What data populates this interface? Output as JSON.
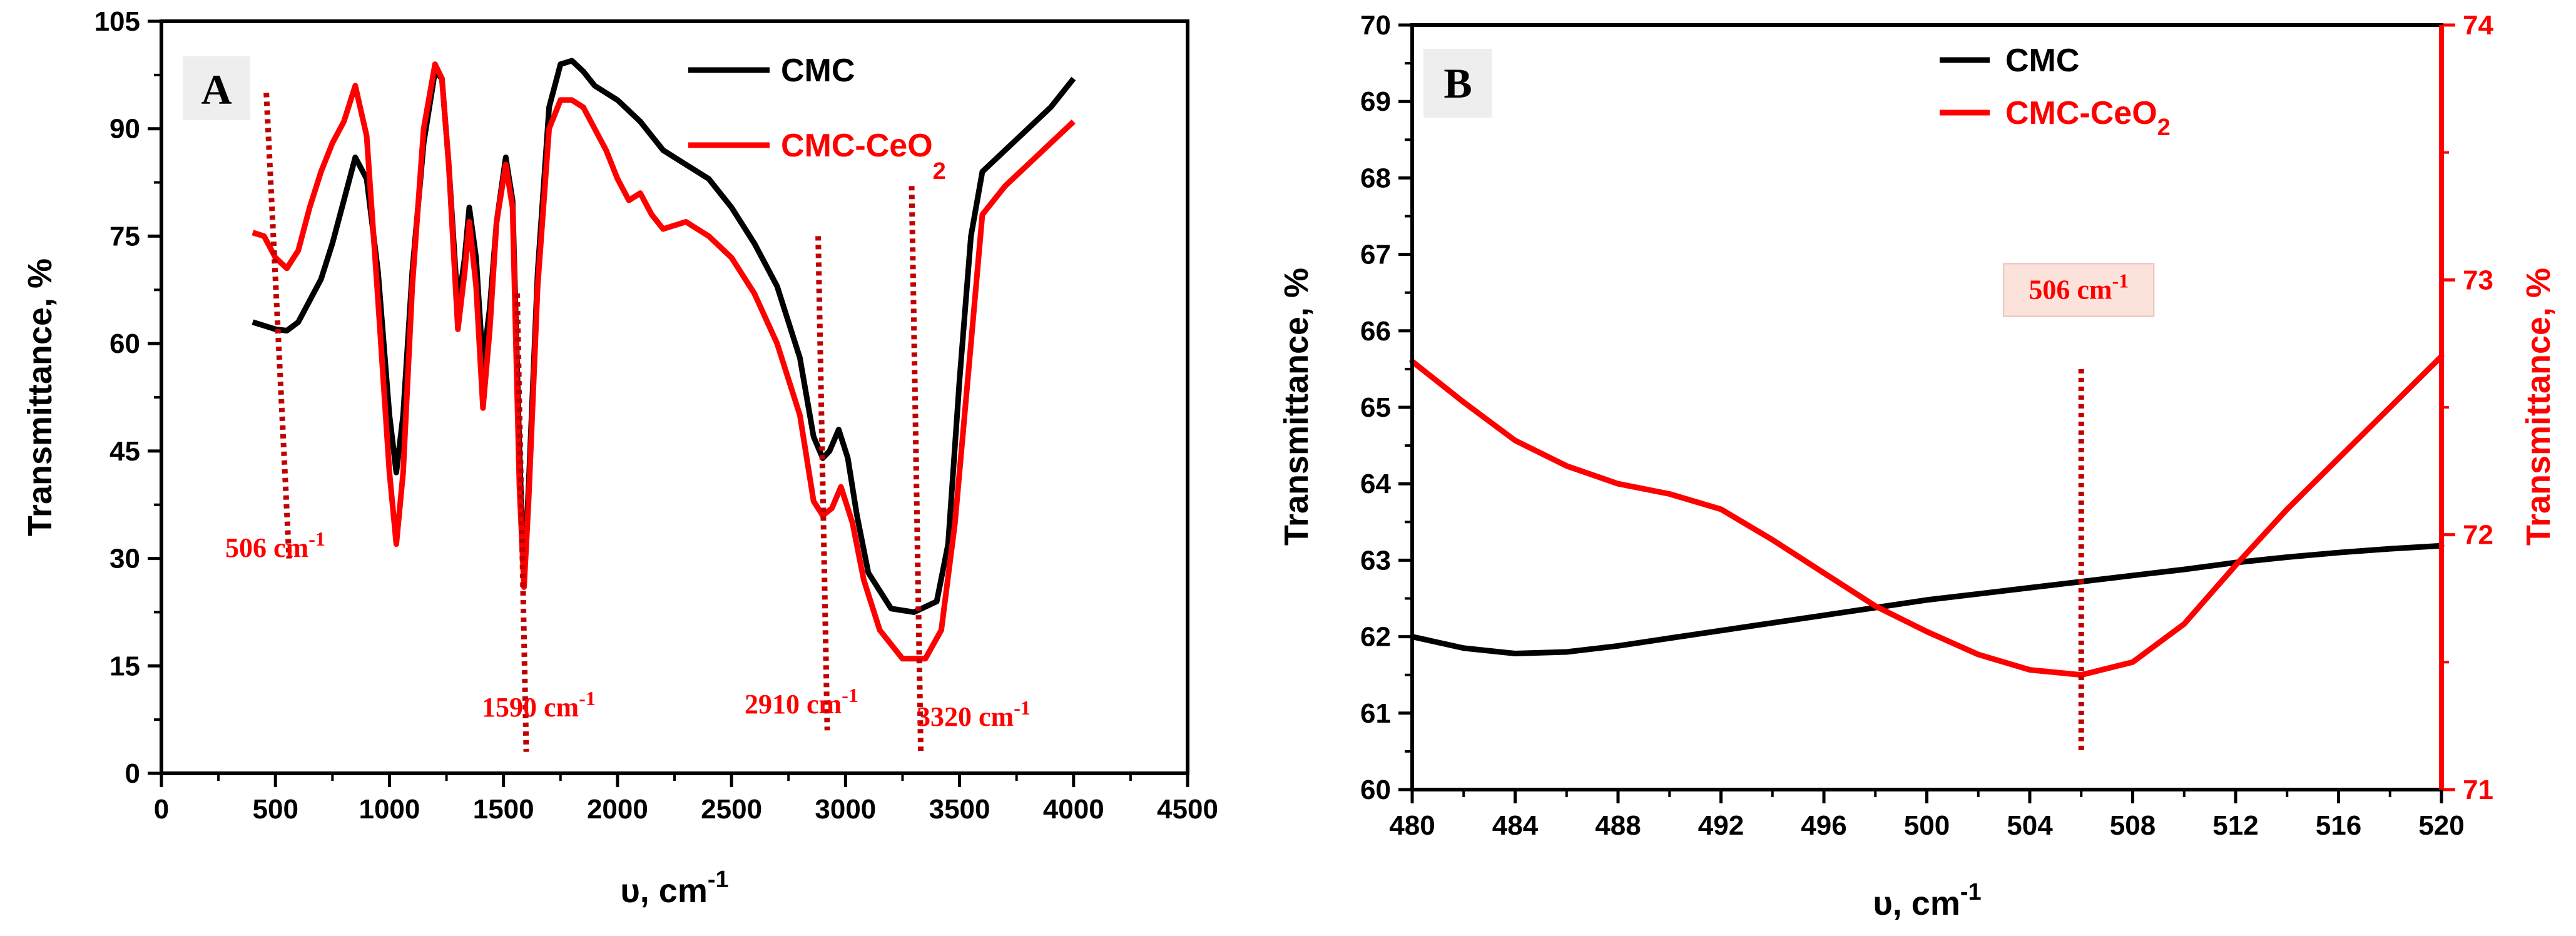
{
  "chart_data": [
    {
      "panel": "A",
      "type": "line",
      "xlabel": "υ, cm",
      "xlabel_sup": "-1",
      "ylabel": "Transmittance, %",
      "xlim": [
        0,
        4500
      ],
      "ylim": [
        0,
        105
      ],
      "xticks": [
        0,
        500,
        1000,
        1500,
        2000,
        2500,
        3000,
        3500,
        4000,
        4500
      ],
      "yticks": [
        0,
        15,
        30,
        45,
        60,
        75,
        90,
        105
      ],
      "legend_position": "top-right",
      "series": [
        {
          "name": "CMC",
          "name_sub": "",
          "color": "#000000",
          "points": [
            [
              400,
              63
            ],
            [
              450,
              62.5
            ],
            [
              500,
              62
            ],
            [
              550,
              61.8
            ],
            [
              600,
              63
            ],
            [
              650,
              66
            ],
            [
              700,
              69
            ],
            [
              750,
              74
            ],
            [
              800,
              80
            ],
            [
              850,
              86
            ],
            [
              900,
              83
            ],
            [
              950,
              70
            ],
            [
              1000,
              50
            ],
            [
              1030,
              42
            ],
            [
              1060,
              50
            ],
            [
              1100,
              70
            ],
            [
              1150,
              88
            ],
            [
              1200,
              98
            ],
            [
              1230,
              97
            ],
            [
              1260,
              85
            ],
            [
              1300,
              65
            ],
            [
              1330,
              72
            ],
            [
              1350,
              79
            ],
            [
              1380,
              72
            ],
            [
              1410,
              57
            ],
            [
              1440,
              65
            ],
            [
              1470,
              77
            ],
            [
              1510,
              86
            ],
            [
              1540,
              80
            ],
            [
              1570,
              45
            ],
            [
              1590,
              27
            ],
            [
              1610,
              40
            ],
            [
              1650,
              70
            ],
            [
              1700,
              93
            ],
            [
              1750,
              99
            ],
            [
              1800,
              99.5
            ],
            [
              1850,
              98
            ],
            [
              1900,
              96
            ],
            [
              2000,
              94
            ],
            [
              2100,
              91
            ],
            [
              2200,
              87
            ],
            [
              2300,
              85
            ],
            [
              2400,
              83
            ],
            [
              2500,
              79
            ],
            [
              2600,
              74
            ],
            [
              2700,
              68
            ],
            [
              2800,
              58
            ],
            [
              2860,
              47
            ],
            [
              2900,
              44
            ],
            [
              2930,
              45
            ],
            [
              2970,
              48
            ],
            [
              3010,
              44
            ],
            [
              3050,
              36
            ],
            [
              3100,
              28
            ],
            [
              3200,
              23
            ],
            [
              3300,
              22.5
            ],
            [
              3400,
              24
            ],
            [
              3450,
              32
            ],
            [
              3500,
              55
            ],
            [
              3550,
              75
            ],
            [
              3600,
              84
            ],
            [
              3700,
              87
            ],
            [
              3800,
              90
            ],
            [
              3900,
              93
            ],
            [
              4000,
              97
            ]
          ]
        },
        {
          "name": "CMC-CeO",
          "name_sub": "2",
          "color": "#ff0000",
          "points": [
            [
              400,
              75.5
            ],
            [
              450,
              75
            ],
            [
              500,
              72
            ],
            [
              550,
              70.5
            ],
            [
              600,
              73
            ],
            [
              650,
              79
            ],
            [
              700,
              84
            ],
            [
              750,
              88
            ],
            [
              800,
              91
            ],
            [
              850,
              96
            ],
            [
              900,
              89
            ],
            [
              950,
              66
            ],
            [
              1000,
              42
            ],
            [
              1030,
              32
            ],
            [
              1060,
              42
            ],
            [
              1100,
              68
            ],
            [
              1150,
              90
            ],
            [
              1200,
              99
            ],
            [
              1230,
              97
            ],
            [
              1260,
              85
            ],
            [
              1300,
              62
            ],
            [
              1330,
              70
            ],
            [
              1350,
              77
            ],
            [
              1380,
              68
            ],
            [
              1410,
              51
            ],
            [
              1440,
              62
            ],
            [
              1470,
              77
            ],
            [
              1510,
              85
            ],
            [
              1540,
              79
            ],
            [
              1570,
              40
            ],
            [
              1590,
              26
            ],
            [
              1610,
              38
            ],
            [
              1650,
              68
            ],
            [
              1700,
              90
            ],
            [
              1750,
              94
            ],
            [
              1800,
              94
            ],
            [
              1850,
              93
            ],
            [
              1900,
              90
            ],
            [
              1950,
              87
            ],
            [
              2000,
              83
            ],
            [
              2050,
              80
            ],
            [
              2100,
              81
            ],
            [
              2150,
              78
            ],
            [
              2200,
              76
            ],
            [
              2300,
              77
            ],
            [
              2400,
              75
            ],
            [
              2500,
              72
            ],
            [
              2600,
              67
            ],
            [
              2700,
              60
            ],
            [
              2800,
              50
            ],
            [
              2860,
              38
            ],
            [
              2900,
              36
            ],
            [
              2940,
              37
            ],
            [
              2980,
              40
            ],
            [
              3030,
              35
            ],
            [
              3080,
              27
            ],
            [
              3150,
              20
            ],
            [
              3250,
              16
            ],
            [
              3350,
              16
            ],
            [
              3420,
              20
            ],
            [
              3480,
              35
            ],
            [
              3550,
              60
            ],
            [
              3600,
              78
            ],
            [
              3700,
              82
            ],
            [
              3800,
              85
            ],
            [
              3900,
              88
            ],
            [
              4000,
              91
            ]
          ]
        }
      ],
      "annotations": [
        {
          "label": "506 cm",
          "sup": "-1",
          "x": 506
        },
        {
          "label": "1590 cm",
          "sup": "-1",
          "x": 1590
        },
        {
          "label": "2910 cm",
          "sup": "-1",
          "x": 2910
        },
        {
          "label": "3320 cm",
          "sup": "-1",
          "x": 3320
        }
      ]
    },
    {
      "panel": "B",
      "type": "line",
      "xlabel": "υ, cm",
      "xlabel_sup": "-1",
      "ylabel": "Transmittance, %",
      "ylabel_right": "Transmittance, %",
      "xlim": [
        480,
        520
      ],
      "ylim": [
        60,
        70
      ],
      "ylim_right": [
        71,
        74
      ],
      "xticks": [
        480,
        484,
        488,
        492,
        496,
        500,
        504,
        508,
        512,
        516,
        520
      ],
      "yticks": [
        60,
        61,
        62,
        63,
        64,
        65,
        66,
        67,
        68,
        69,
        70
      ],
      "yticks_right": [
        71,
        72,
        73,
        74
      ],
      "legend_position": "top-center",
      "series": [
        {
          "name": "CMC",
          "name_sub": "",
          "axis": "left",
          "color": "#000000",
          "points": [
            [
              480,
              62.0
            ],
            [
              482,
              61.85
            ],
            [
              484,
              61.78
            ],
            [
              486,
              61.8
            ],
            [
              488,
              61.88
            ],
            [
              490,
              61.98
            ],
            [
              492,
              62.08
            ],
            [
              494,
              62.18
            ],
            [
              496,
              62.28
            ],
            [
              498,
              62.38
            ],
            [
              500,
              62.48
            ],
            [
              502,
              62.56
            ],
            [
              504,
              62.64
            ],
            [
              506,
              62.72
            ],
            [
              508,
              62.8
            ],
            [
              510,
              62.88
            ],
            [
              512,
              62.97
            ],
            [
              514,
              63.04
            ],
            [
              516,
              63.1
            ],
            [
              518,
              63.15
            ],
            [
              520,
              63.19
            ]
          ]
        },
        {
          "name": "CMC-CeO",
          "name_sub": "2",
          "axis": "right",
          "color": "#ff0000",
          "points": [
            [
              480,
              72.68
            ],
            [
              482,
              72.52
            ],
            [
              484,
              72.37
            ],
            [
              486,
              72.27
            ],
            [
              488,
              72.2
            ],
            [
              490,
              72.16
            ],
            [
              492,
              72.1
            ],
            [
              494,
              71.98
            ],
            [
              496,
              71.85
            ],
            [
              498,
              71.72
            ],
            [
              500,
              71.62
            ],
            [
              502,
              71.53
            ],
            [
              504,
              71.47
            ],
            [
              506,
              71.45
            ],
            [
              508,
              71.5
            ],
            [
              510,
              71.65
            ],
            [
              512,
              71.88
            ],
            [
              514,
              72.1
            ],
            [
              516,
              72.3
            ],
            [
              518,
              72.5
            ],
            [
              520,
              72.7
            ]
          ]
        }
      ],
      "annotations": [
        {
          "label": "506 cm",
          "sup": "-1",
          "x": 506
        }
      ]
    }
  ],
  "panels": {
    "a_label": "A",
    "b_label": "B"
  }
}
